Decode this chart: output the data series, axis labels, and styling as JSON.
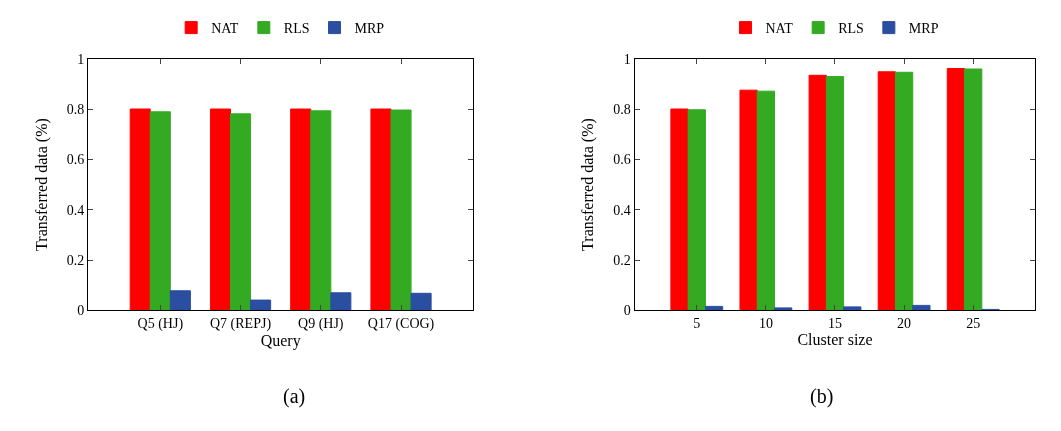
{
  "chart_data": [
    {
      "type": "bar",
      "xlabel": "Query",
      "ylabel": "Transferred data (%)",
      "categories": [
        "Q5 (HJ)",
        "Q7 (REPJ)",
        "Q9 (HJ)",
        "Q17 (COG)"
      ],
      "series": [
        {
          "name": "NAT",
          "color": "#ff0000",
          "values": [
            0.8,
            0.8,
            0.8,
            0.8
          ]
        },
        {
          "name": "RLS",
          "color": "#33aa22",
          "values": [
            0.789,
            0.781,
            0.793,
            0.796
          ]
        },
        {
          "name": "MRP",
          "color": "#2a4ea0",
          "values": [
            0.078,
            0.041,
            0.07,
            0.068
          ]
        }
      ],
      "ylim": [
        0,
        1
      ],
      "yticks": [
        0,
        0.2,
        0.4,
        0.6,
        0.8,
        1
      ],
      "legend": "top",
      "annotations": [
        "(a)"
      ]
    },
    {
      "type": "bar",
      "xlabel": "Cluster size",
      "ylabel": "Transferred data (%)",
      "categories": [
        "5",
        "10",
        "15",
        "20",
        "25"
      ],
      "series": [
        {
          "name": "NAT",
          "color": "#ff0000",
          "values": [
            0.8,
            0.875,
            0.934,
            0.948,
            0.961
          ]
        },
        {
          "name": "RLS",
          "color": "#33aa22",
          "values": [
            0.797,
            0.871,
            0.929,
            0.946,
            0.959
          ]
        },
        {
          "name": "MRP",
          "color": "#2a4ea0",
          "values": [
            0.016,
            0.01,
            0.014,
            0.02,
            0.004
          ]
        }
      ],
      "ylim": [
        0,
        1
      ],
      "yticks": [
        0,
        0.2,
        0.4,
        0.6,
        0.8,
        1
      ],
      "legend": "top",
      "annotations": [
        "(b)"
      ]
    }
  ]
}
